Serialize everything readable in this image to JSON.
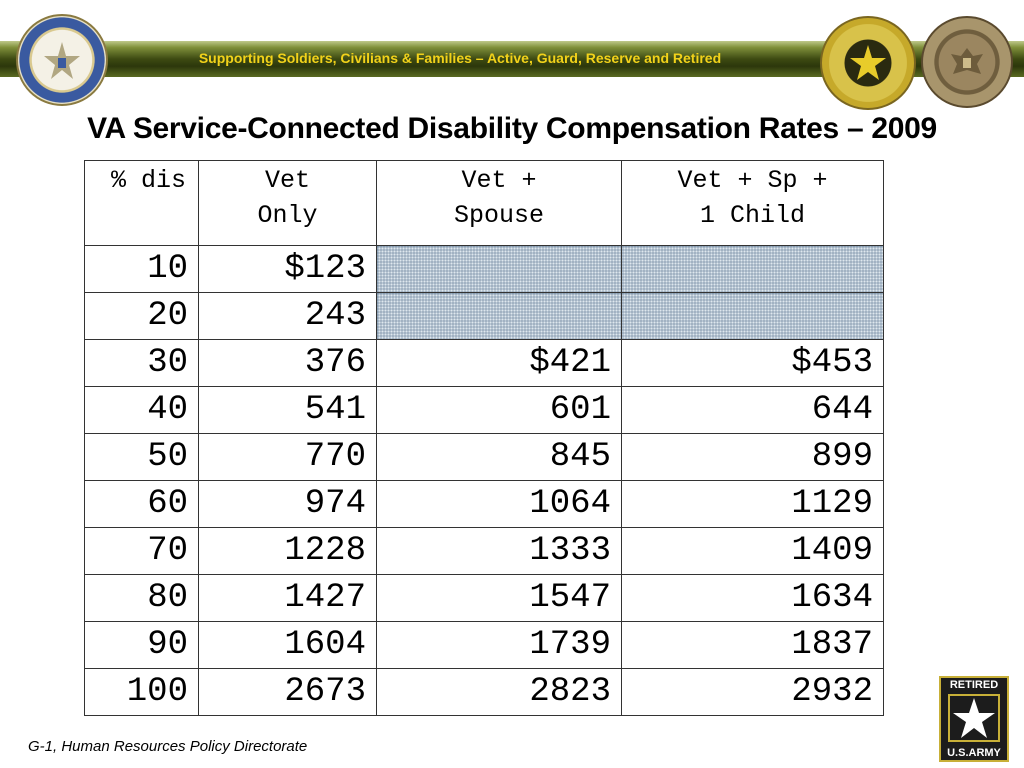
{
  "header": {
    "banner_text": "Supporting Soldiers, Civilians & Families – Active, Guard, Reserve and Retired",
    "left_seal_icon": "department-of-the-army-seal-icon",
    "right_seal_1_icon": "deputy-chief-of-staff-g1-seal-icon",
    "right_seal_2_icon": "great-seal-icon"
  },
  "title": "VA Service-Connected Disability Compensation Rates – 2009",
  "table": {
    "headers": [
      {
        "line1": "% dis",
        "line2": ""
      },
      {
        "line1": "Vet",
        "line2": "Only"
      },
      {
        "line1": "Vet +",
        "line2": "Spouse"
      },
      {
        "line1": "Vet + Sp +",
        "line2": "1 Child"
      }
    ],
    "rows": [
      [
        "10",
        "$123",
        "",
        ""
      ],
      [
        "20",
        "243",
        "",
        ""
      ],
      [
        "30",
        "376",
        "$421",
        "$453"
      ],
      [
        "40",
        "541",
        "601",
        "644"
      ],
      [
        "50",
        "770",
        "845",
        "899"
      ],
      [
        "60",
        "974",
        "1064",
        "1129"
      ],
      [
        "70",
        "1228",
        "1333",
        "1409"
      ],
      [
        "80",
        "1427",
        "1547",
        "1634"
      ],
      [
        "90",
        "1604",
        "1739",
        "1837"
      ],
      [
        "100",
        "2673",
        "2823",
        "2932"
      ]
    ]
  },
  "footer": {
    "text": "G-1, Human Resources Policy Directorate"
  },
  "logo": {
    "top": "RETIRED",
    "bottom": "U.S.ARMY",
    "icon": "army-star-icon"
  },
  "colors": {
    "banner_text": "#f2d21a",
    "banner_dark": "#2c370b",
    "shaded_cell": "#dfe7ee"
  }
}
